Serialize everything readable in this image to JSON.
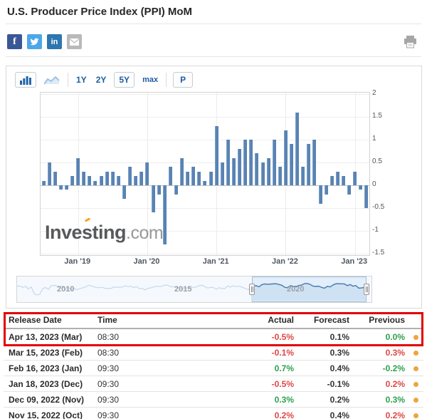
{
  "page": {
    "title": "U.S. Producer Price Index (PPI) MoM"
  },
  "share": {
    "facebook": "f",
    "linkedin": "in"
  },
  "toolbar": {
    "ranges": [
      "1Y",
      "2Y",
      "5Y",
      "max"
    ],
    "selected_range": "5Y",
    "selected_chart_type": "bar",
    "settings": "P"
  },
  "chart_data": {
    "type": "bar",
    "title": "U.S. Producer Price Index (PPI) MoM",
    "unit": "percent MoM",
    "x_start_month": "2018-07",
    "x_end_month": "2023-03",
    "values": [
      0.1,
      0.5,
      0.3,
      -0.1,
      -0.1,
      0.2,
      0.6,
      0.3,
      0.2,
      0.1,
      0.2,
      0.3,
      0.3,
      0.2,
      -0.3,
      0.4,
      0.2,
      0.3,
      0.5,
      -0.6,
      -0.2,
      -1.3,
      0.4,
      -0.2,
      0.6,
      0.3,
      0.4,
      0.3,
      0.1,
      0.3,
      1.3,
      0.5,
      1.0,
      0.6,
      0.8,
      1.0,
      1.0,
      0.7,
      0.5,
      0.6,
      1.0,
      0.4,
      1.2,
      0.9,
      1.6,
      0.4,
      0.9,
      1.0,
      -0.4,
      -0.2,
      0.2,
      0.3,
      0.2,
      -0.2,
      0.3,
      -0.1,
      -0.5
    ],
    "x_tick_labels": [
      "Jan '19",
      "Jan '20",
      "Jan '21",
      "Jan '22",
      "Jan '23"
    ],
    "x_tick_indices": [
      6,
      18,
      30,
      42,
      54
    ],
    "y_ticks": [
      2,
      1.5,
      1,
      0.5,
      0,
      -0.5,
      -1,
      -1.5
    ],
    "ylim": [
      -1.5,
      2
    ],
    "grid": true,
    "legend": false,
    "bar_color": "#5983b3"
  },
  "watermark": {
    "name": "Investing",
    "suffix": ".com"
  },
  "navigator": {
    "year_labels": [
      "2010",
      "2015",
      "2020"
    ]
  },
  "table": {
    "columns": [
      "Release Date",
      "Time",
      "Actual",
      "Forecast",
      "Previous"
    ],
    "rows": [
      {
        "release_date": "Apr 13, 2023 (Mar)",
        "time": "08:30",
        "actual": "-0.5%",
        "actual_class": "red",
        "forecast": "0.1%",
        "previous": "0.0%",
        "previous_class": "green",
        "highlighted": true
      },
      {
        "release_date": "Mar 15, 2023 (Feb)",
        "time": "08:30",
        "actual": "-0.1%",
        "actual_class": "red",
        "forecast": "0.3%",
        "previous": "0.3%",
        "previous_class": "red",
        "highlighted": false
      },
      {
        "release_date": "Feb 16, 2023 (Jan)",
        "time": "09:30",
        "actual": "0.7%",
        "actual_class": "green",
        "forecast": "0.4%",
        "previous": "-0.2%",
        "previous_class": "green",
        "highlighted": false
      },
      {
        "release_date": "Jan 18, 2023 (Dec)",
        "time": "09:30",
        "actual": "-0.5%",
        "actual_class": "red",
        "forecast": "-0.1%",
        "previous": "0.2%",
        "previous_class": "red",
        "highlighted": false
      },
      {
        "release_date": "Dec 09, 2022 (Nov)",
        "time": "09:30",
        "actual": "0.3%",
        "actual_class": "green",
        "forecast": "0.2%",
        "previous": "0.3%",
        "previous_class": "green",
        "highlighted": false
      },
      {
        "release_date": "Nov 15, 2022 (Oct)",
        "time": "09:30",
        "actual": "0.2%",
        "actual_class": "red",
        "forecast": "0.4%",
        "previous": "0.2%",
        "previous_class": "red",
        "highlighted": false
      }
    ]
  },
  "colors": {
    "accent_blue": "#1c5da2",
    "bar": "#5983b3",
    "negative_red": "#e04646",
    "positive_green": "#2ea04f",
    "dot_orange": "#f0a43c",
    "highlight_red": "#e10000"
  }
}
